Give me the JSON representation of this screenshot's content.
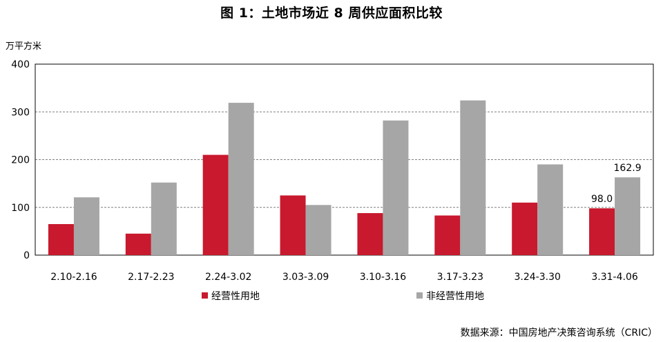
{
  "chart_data": {
    "type": "bar",
    "title": "图 1：土地市场近 8 周供应面积比较",
    "unit_label": "万平方米",
    "source": "数据来源：中国房地产决策咨询系统（CRIC）",
    "categories": [
      "2.10-2.16",
      "2.17-2.23",
      "2.24-3.02",
      "3.03-3.09",
      "3.10-3.16",
      "3.17-3.23",
      "3.24-3.30",
      "3.31-4.06"
    ],
    "ylim": [
      0,
      400
    ],
    "yticks": [
      0,
      100,
      200,
      300,
      400
    ],
    "grid": true,
    "legend_position": "bottom",
    "series": [
      {
        "name": "经营性用地",
        "color": "#c8192e",
        "values": [
          65,
          45,
          210,
          125,
          88,
          83,
          110,
          98.0
        ],
        "labels": [
          "",
          "",
          "",
          "",
          "",
          "",
          "",
          "98.0"
        ]
      },
      {
        "name": "非经营性用地",
        "color": "#a6a6a6",
        "values": [
          121,
          152,
          319,
          105,
          282,
          324,
          190,
          162.9
        ],
        "labels": [
          "",
          "",
          "",
          "",
          "",
          "",
          "",
          "162.9"
        ]
      }
    ]
  }
}
